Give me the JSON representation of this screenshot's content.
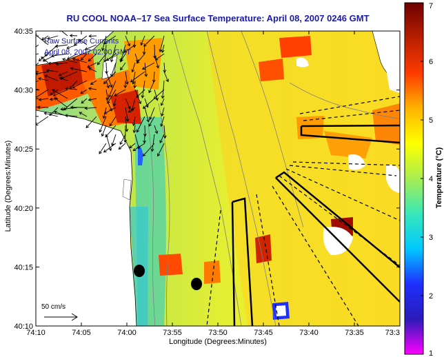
{
  "title": "RU COOL  NOAA–17  Sea Surface Temperature:  April 08, 2007 0246 GMT",
  "axes": {
    "ylabel": "Latitude (Degrees:Minutes)",
    "xlabel": "Longitude (Degrees:Minutes)",
    "x_ticks": [
      "74:10",
      "74:05",
      "74:00",
      "73:55",
      "73:50",
      "73:45",
      "73:40",
      "73:35",
      "73:3"
    ],
    "y_ticks": [
      "40:35",
      "40:30",
      "40:25",
      "40:20",
      "40:15",
      "40:10"
    ]
  },
  "legend": {
    "line1": "Raw Surface Currents",
    "line2": "April 08, 2007 02:00 GMT"
  },
  "scale_arrow": {
    "label": "50 cm/s"
  },
  "colorbar": {
    "label": "Temperature (°C)",
    "ticks": [
      "1",
      "2",
      "3",
      "4",
      "5",
      "6",
      "7"
    ],
    "min": 1,
    "max": 7,
    "colors": [
      "#ff00ff",
      "#2a1bb8",
      "#1f2fff",
      "#00c8ff",
      "#38e8b8",
      "#a8ee50",
      "#ffff00",
      "#ffb300",
      "#ff3a00",
      "#b81f00",
      "#6e0000"
    ]
  },
  "colors": {
    "land": "#ffffff",
    "coast": "#000000",
    "water_base": "#d7ec3a",
    "title": "#1a1aa6",
    "arrow": "#000000"
  }
}
